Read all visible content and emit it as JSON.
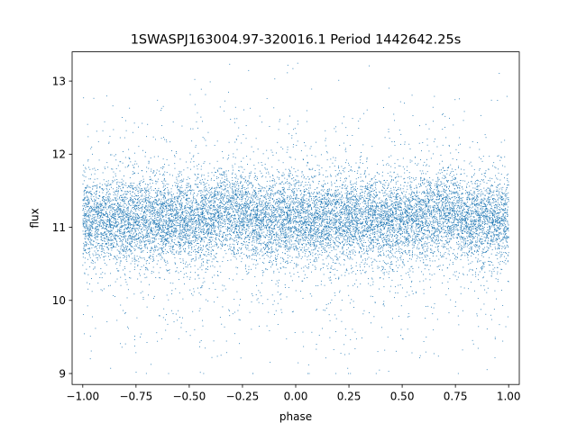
{
  "chart_data": {
    "type": "scatter",
    "title": "1SWASPJ163004.97-320016.1 Period 1442642.25s",
    "xlabel": "phase",
    "ylabel": "flux",
    "xlim": [
      -1.05,
      1.05
    ],
    "ylim": [
      8.85,
      13.4
    ],
    "x_ticks": [
      -1.0,
      -0.75,
      -0.5,
      -0.25,
      0.0,
      0.25,
      0.5,
      0.75,
      1.0
    ],
    "x_tick_labels": [
      "−1.00",
      "−0.75",
      "−0.50",
      "−0.25",
      "0.00",
      "0.25",
      "0.50",
      "0.75",
      "1.00"
    ],
    "y_ticks": [
      9,
      10,
      11,
      12,
      13
    ],
    "y_tick_labels": [
      "9",
      "10",
      "11",
      "12",
      "13"
    ],
    "grid": false,
    "legend": "none",
    "marker_color": "#1f77b4",
    "series": [
      {
        "x_range": [
          -1.0,
          1.0
        ],
        "baseline_flux": 11.1,
        "typical_spread": [
          10.5,
          11.8
        ],
        "outlier_range": [
          9.0,
          13.25
        ],
        "point_count_estimate": 20000
      }
    ]
  }
}
